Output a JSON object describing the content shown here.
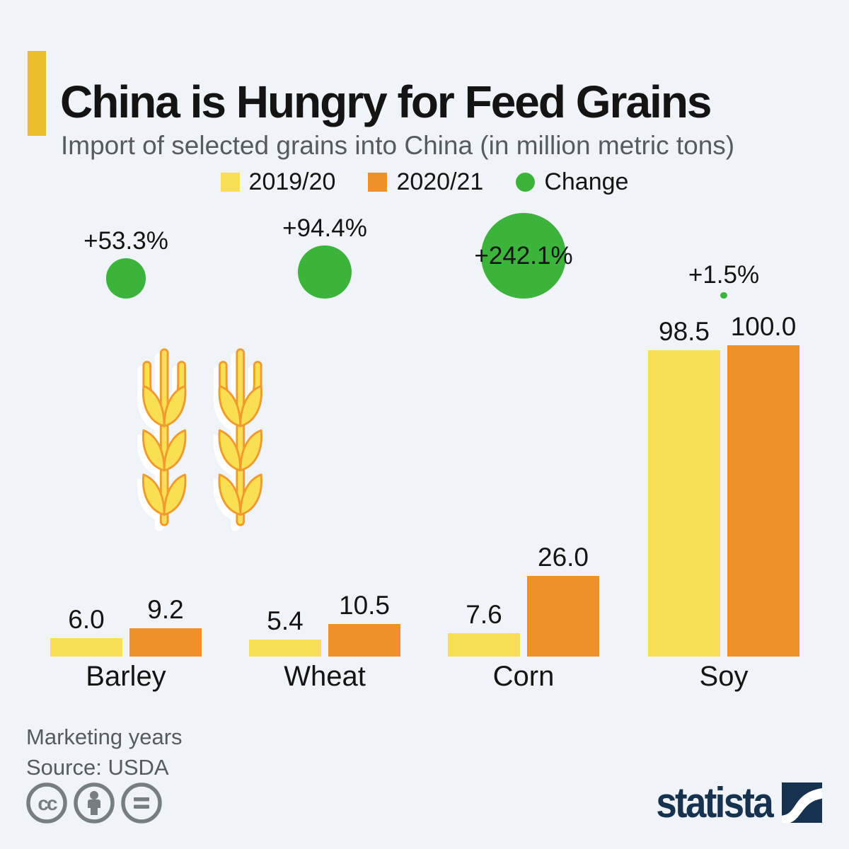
{
  "header": {
    "title": "China is Hungry for Feed Grains",
    "subtitle": "Import of selected grains into China (in million metric tons)"
  },
  "legend": {
    "items": [
      {
        "label": "2019/20",
        "swatch": "yellow-square-icon"
      },
      {
        "label": "2020/21",
        "swatch": "orange-square-icon"
      },
      {
        "label": "Change",
        "swatch": "green-circle-icon"
      }
    ]
  },
  "chart_data": {
    "type": "bar",
    "title": "China is Hungry for Feed Grains",
    "subtitle": "Import of selected grains into China (in million metric tons)",
    "unit": "million metric tons",
    "categories": [
      "Barley",
      "Wheat",
      "Corn",
      "Soy"
    ],
    "series": [
      {
        "name": "2019/20",
        "color": "yellow_2019_20",
        "values": [
          6.0,
          5.4,
          7.6,
          98.5
        ],
        "labels": [
          "6.0",
          "5.4",
          "7.6",
          "98.5"
        ]
      },
      {
        "name": "2020/21",
        "color": "orange_2020_21",
        "values": [
          9.2,
          10.5,
          26.0,
          100.0
        ],
        "labels": [
          "9.2",
          "10.5",
          "26.0",
          "100.0"
        ]
      }
    ],
    "change_series": {
      "name": "Change",
      "color": "green_change",
      "percent": [
        53.3,
        94.4,
        242.1,
        1.5
      ],
      "labels": [
        "+53.3%",
        "+94.4%",
        "+242.1%",
        "+1.5%"
      ]
    },
    "ylim": [
      0,
      100
    ],
    "grid": false,
    "legend_position": "top-center"
  },
  "footer": {
    "note": "Marketing years",
    "source": "Source: USDA",
    "license_icons": [
      "cc-icon",
      "attribution-person-icon",
      "equals-icon"
    ],
    "brand": "statista"
  },
  "colors": {
    "background": "#F0F4F8",
    "yellow_2019_20": "#F9DF56",
    "orange_2020_21": "#EE9228",
    "green_change": "#3CB43C",
    "gold_accent": "#EABD2D",
    "title_text": "#141414",
    "gray_text": "#555B5E",
    "license_gray": "#777E82",
    "brand_navy": "#17324F",
    "wheat_yellow": "#FBDF52",
    "wheat_orange": "#F09B2E"
  }
}
